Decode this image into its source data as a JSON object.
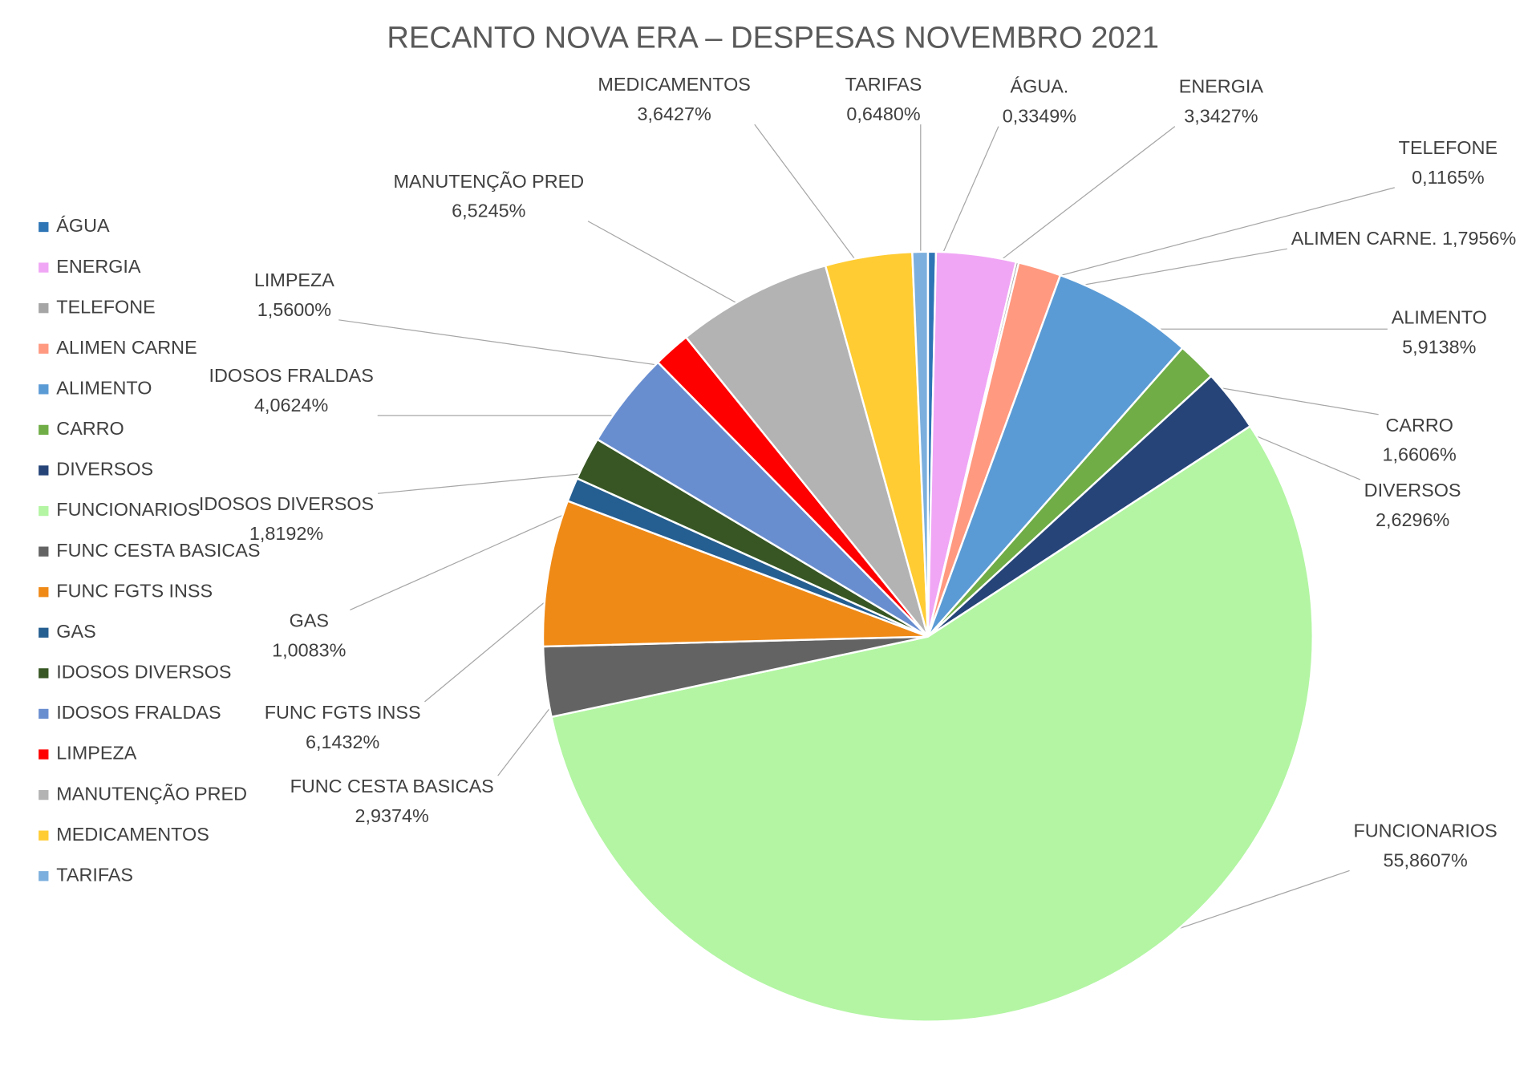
{
  "chart_data": {
    "type": "pie",
    "title": "RECANTO NOVA ERA – DESPESAS NOVEMBRO 2021",
    "categories": [
      "ÁGUA",
      "ENERGIA",
      "TELEFONE",
      "ALIMEN CARNE",
      "ALIMENTO",
      "CARRO",
      "DIVERSOS",
      "FUNCIONARIOS",
      "FUNC CESTA BASICAS",
      "FUNC FGTS INSS",
      "GAS",
      "IDOSOS DIVERSOS",
      "IDOSOS FRALDAS",
      "LIMPEZA",
      "MANUTENÇÃO PRED",
      "MEDICAMENTOS",
      "TARIFAS"
    ],
    "data_label_names": [
      "ÁGUA.",
      "ENERGIA",
      "TELEFONE",
      "ALIMEN CARNE.",
      "ALIMENTO",
      "CARRO",
      "DIVERSOS",
      "FUNCIONARIOS",
      "FUNC CESTA BASICAS",
      "FUNC FGTS INSS",
      "GAS",
      "IDOSOS DIVERSOS",
      "IDOSOS FRALDAS",
      "LIMPEZA",
      "MANUTENÇÃO PRED",
      "MEDICAMENTOS",
      "TARIFAS"
    ],
    "values": [
      0.3349,
      3.3427,
      0.1165,
      1.7956,
      5.9138,
      1.6606,
      2.6296,
      55.8607,
      2.9374,
      6.1432,
      1.0083,
      1.8192,
      4.0624,
      1.56,
      6.5245,
      3.6427,
      0.648
    ],
    "value_labels": [
      "0,3349%",
      "3,3427%",
      "0,1165%",
      "1,7956%",
      "5,9138%",
      "1,6606%",
      "2,6296%",
      "55,8607%",
      "2,9374%",
      "6,1432%",
      "1,0083%",
      "1,8192%",
      "4,0624%",
      "1,5600%",
      "6,5245%",
      "3,6427%",
      "0,6480%"
    ],
    "colors": [
      "#2e75b6",
      "#f0a6f5",
      "#a5a5a5",
      "#ff9980",
      "#5b9bd5",
      "#70ad47",
      "#264478",
      "#b3f5a3",
      "#636363",
      "#ef8a17",
      "#255e91",
      "#375623",
      "#698ed0",
      "#ff0000",
      "#b3b3b3",
      "#ffcc33",
      "#7cafdd"
    ],
    "legend": "left"
  }
}
